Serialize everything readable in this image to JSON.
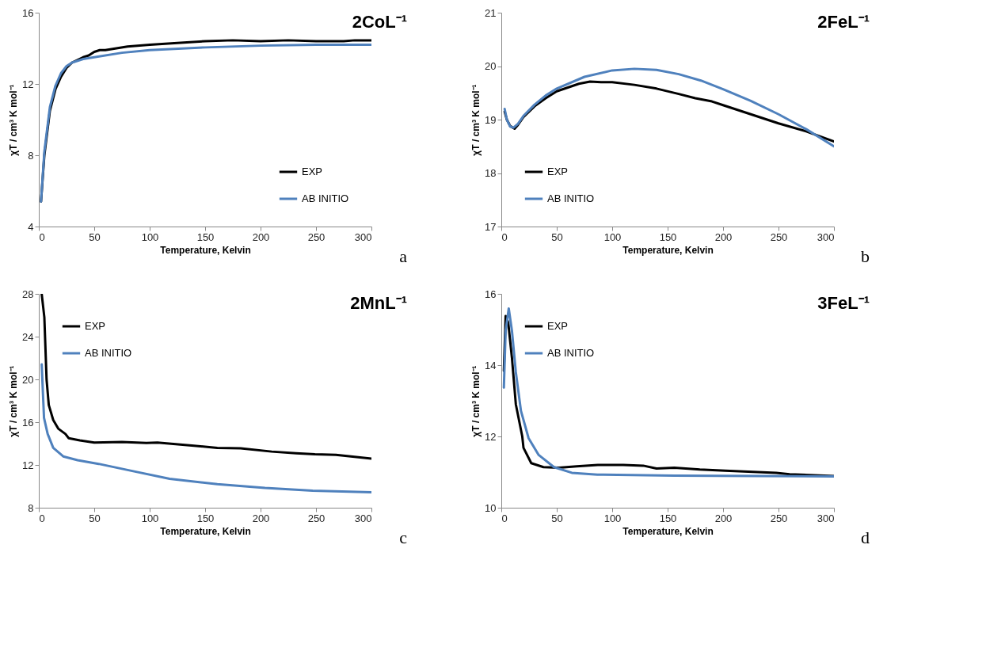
{
  "chart_data": [
    {
      "type": "line",
      "title": "2CoL⁻¹",
      "xlabel": "Temperature, Kelvin",
      "ylabel": "χT / cm³ K mol⁻¹",
      "xlim": [
        0,
        300
      ],
      "xticks": [
        0,
        50,
        100,
        150,
        200,
        250,
        300
      ],
      "ylim": [
        4,
        16
      ],
      "yticks": [
        4,
        8,
        12,
        16
      ],
      "grid": false,
      "legend": "bottom right",
      "marker": "none",
      "line_style": "solid",
      "annotations": [
        "a"
      ],
      "series": [
        {
          "name": "EXP",
          "color": "#000000",
          "x": [
            2,
            5,
            10,
            15,
            20,
            25,
            30,
            40,
            45,
            50,
            55,
            60,
            70,
            80,
            100,
            125,
            150,
            175,
            200,
            225,
            250,
            275,
            285,
            300
          ],
          "values": [
            5.4,
            8,
            10.5,
            11.7,
            12.4,
            12.9,
            13.2,
            13.5,
            13.6,
            13.8,
            13.9,
            13.9,
            14.0,
            14.1,
            14.2,
            14.3,
            14.4,
            14.45,
            14.4,
            14.45,
            14.4,
            14.4,
            14.45,
            14.45
          ]
        },
        {
          "name": "AB INITIO",
          "color": "#4f81bd",
          "x": [
            2,
            5,
            10,
            15,
            20,
            25,
            30,
            40,
            50,
            75,
            100,
            150,
            200,
            250,
            300
          ],
          "values": [
            5.4,
            8.2,
            10.7,
            11.9,
            12.6,
            13.0,
            13.2,
            13.4,
            13.5,
            13.75,
            13.9,
            14.05,
            14.15,
            14.2,
            14.2
          ]
        }
      ]
    },
    {
      "type": "line",
      "title": "2FeL⁻¹",
      "xlabel": "Temperature, Kelvin",
      "ylabel": "χT / cm³ K mol⁻¹",
      "xlim": [
        0,
        300
      ],
      "xticks": [
        0,
        50,
        100,
        150,
        200,
        250,
        300
      ],
      "ylim": [
        17,
        21
      ],
      "yticks": [
        17,
        18,
        19,
        20,
        21
      ],
      "grid": false,
      "legend": "bottom left",
      "marker": "none",
      "line_style": "solid",
      "annotations": [
        "b"
      ],
      "series": [
        {
          "name": "EXP",
          "color": "#000000",
          "x": [
            3,
            5,
            8,
            12,
            15,
            20,
            30,
            40,
            50,
            60,
            70,
            80,
            90,
            100,
            120,
            140,
            160,
            175,
            190,
            200,
            225,
            250,
            275,
            300
          ],
          "values": [
            19.15,
            19.0,
            18.88,
            18.83,
            18.9,
            19.05,
            19.25,
            19.4,
            19.53,
            19.6,
            19.67,
            19.71,
            19.7,
            19.7,
            19.65,
            19.58,
            19.48,
            19.4,
            19.34,
            19.27,
            19.1,
            18.93,
            18.78,
            18.59
          ]
        },
        {
          "name": "AB INITIO",
          "color": "#4f81bd",
          "x": [
            3,
            5,
            8,
            11,
            15,
            20,
            30,
            40,
            50,
            75,
            100,
            120,
            140,
            160,
            180,
            200,
            225,
            250,
            275,
            300
          ],
          "values": [
            19.2,
            19.0,
            18.87,
            18.85,
            18.92,
            19.07,
            19.28,
            19.45,
            19.58,
            19.8,
            19.92,
            19.95,
            19.93,
            19.85,
            19.73,
            19.57,
            19.35,
            19.1,
            18.82,
            18.5
          ]
        }
      ]
    },
    {
      "type": "line",
      "title": "2MnL⁻¹",
      "xlabel": "Temperature, Kelvin",
      "ylabel": "χT / cm³ K mol⁻¹",
      "xlim": [
        0,
        300
      ],
      "xticks": [
        0,
        50,
        100,
        150,
        200,
        250,
        300
      ],
      "ylim": [
        8,
        28
      ],
      "yticks": [
        8,
        12,
        16,
        20,
        24,
        28
      ],
      "grid": false,
      "legend": "top left",
      "marker": "none",
      "line_style": "solid",
      "annotations": [
        "c"
      ],
      "series": [
        {
          "name": "EXP",
          "color": "#000000",
          "x": [
            2.6,
            5,
            7,
            9,
            13,
            17.5,
            24,
            27,
            37,
            50,
            75,
            97,
            107,
            140,
            161,
            182,
            210,
            232,
            249,
            268,
            300
          ],
          "values": [
            28,
            25.8,
            20,
            17.6,
            16.2,
            15.4,
            14.9,
            14.5,
            14.3,
            14.1,
            14.15,
            14.05,
            14.1,
            13.8,
            13.6,
            13.55,
            13.25,
            13.1,
            13.0,
            12.95,
            12.6
          ]
        },
        {
          "name": "AB INITIO",
          "color": "#4f81bd",
          "x": [
            2.6,
            4.7,
            8,
            13,
            22,
            35,
            54,
            86,
            118,
            161,
            204,
            247,
            300
          ],
          "values": [
            21.4,
            16.4,
            14.9,
            13.6,
            12.8,
            12.45,
            12.1,
            11.4,
            10.7,
            10.2,
            9.85,
            9.6,
            9.45
          ]
        }
      ]
    },
    {
      "type": "line",
      "title": "3FeL⁻¹",
      "xlabel": "Temperature, Kelvin",
      "ylabel": "χT / cm³ K mol⁻¹",
      "xlim": [
        0,
        300
      ],
      "xticks": [
        0,
        50,
        100,
        150,
        200,
        250,
        300
      ],
      "ylim": [
        10,
        16
      ],
      "yticks": [
        10,
        12,
        14,
        16
      ],
      "grid": false,
      "legend": "top left",
      "marker": "none",
      "line_style": "solid",
      "annotations": [
        "d"
      ],
      "series": [
        {
          "name": "EXP",
          "color": "#000000",
          "x": [
            2.3,
            3.9,
            6.2,
            9.6,
            13.1,
            18.9,
            20,
            27,
            38,
            52,
            68,
            87,
            110,
            128,
            140,
            156,
            179,
            202,
            248,
            260,
            300
          ],
          "values": [
            13.84,
            15.38,
            15.2,
            14.2,
            12.9,
            12.0,
            11.68,
            11.25,
            11.14,
            11.12,
            11.16,
            11.2,
            11.2,
            11.18,
            11.1,
            11.12,
            11.07,
            11.04,
            10.98,
            10.94,
            10.89
          ]
        },
        {
          "name": "AB INITIO",
          "color": "#4f81bd",
          "x": [
            2.3,
            3.9,
            6.7,
            9.6,
            13.1,
            17.7,
            24.6,
            33.7,
            47.5,
            63.6,
            86.6,
            156,
            300
          ],
          "values": [
            13.37,
            14.96,
            15.59,
            14.96,
            13.8,
            12.72,
            11.95,
            11.48,
            11.14,
            10.98,
            10.93,
            10.9,
            10.88
          ]
        }
      ]
    }
  ]
}
